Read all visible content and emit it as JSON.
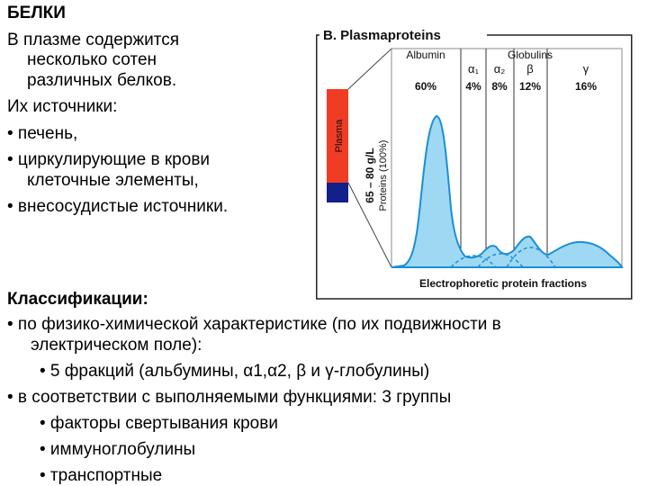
{
  "left_text": {
    "title": "БЕЛКИ",
    "line1": "В плазме содержится",
    "line2": "несколько сотен",
    "line3": "различных белков.",
    "line4": "Их источники:",
    "bullet1": "• печень,",
    "bullet2a": "• циркулирующие в крови",
    "bullet2b": "клеточные элементы,",
    "bullet3": "• внесосудистые источники."
  },
  "figure": {
    "header": "B. Plasmaproteins",
    "plasma_label": "Plasma",
    "concentration_label_1": "65 – 80 g/L",
    "concentration_label_2": "Proteins (100%)",
    "albumin_label": "Albumin",
    "globulins_label": "Globulins",
    "fractions": [
      {
        "name": "Albumin",
        "symbol": "",
        "percent": "60%"
      },
      {
        "name": "alpha1",
        "symbol": "α₁",
        "percent": "4%"
      },
      {
        "name": "alpha2",
        "symbol": "α₂",
        "percent": "8%"
      },
      {
        "name": "beta",
        "symbol": "β",
        "percent": "12%"
      },
      {
        "name": "gamma",
        "symbol": "γ",
        "percent": "16%"
      }
    ],
    "footer": "Electrophoretic protein fractions",
    "colors": {
      "plasma_red": "#f03c24",
      "plasma_blue": "#12208a",
      "curve_fill": "#9fd8f2",
      "curve_stroke": "#1a8fd6"
    }
  },
  "classification": {
    "heading": "Классификации:",
    "b1a": "• по физико-химической характеристике (по их подвижности в",
    "b1b": "электрическом поле):",
    "b1_sub": "• 5 фракций (альбумины, α1,α2, β и γ-глобулины)",
    "b2": "• в соответствии с выполняемыми функциями: 3 группы",
    "b2_sub1": "• факторы свертывания крови",
    "b2_sub2": "• иммуноглобулины",
    "b2_sub3": "• транспортные"
  }
}
